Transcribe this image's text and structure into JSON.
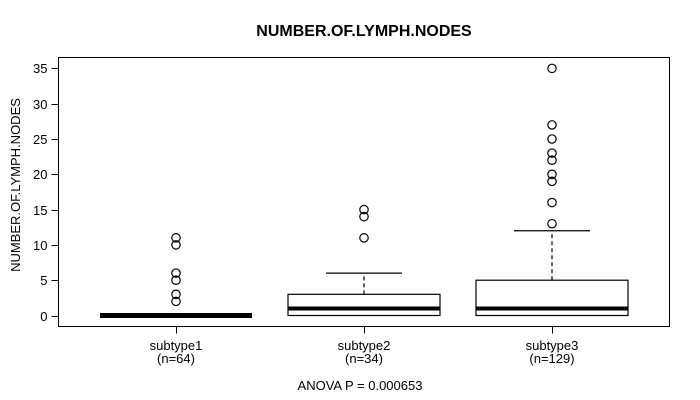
{
  "figure": {
    "background": "#ffffff",
    "line_color": "#000000"
  },
  "chart_data": {
    "type": "boxplot",
    "title": "NUMBER.OF.LYMPH.NODES",
    "ylabel": "NUMBER.OF.LYMPH.NODES",
    "xlabel": "",
    "annotation": "ANOVA P = 0.000653",
    "ylim": [
      0,
      35
    ],
    "yticks": [
      0,
      5,
      10,
      15,
      20,
      25,
      30,
      35
    ],
    "grid": false,
    "legend": false,
    "groups": [
      {
        "label": "subtype1",
        "sublabel": "(n=64)",
        "q1": 0,
        "median": 0,
        "q3": 0,
        "whisker_low": 0,
        "whisker_high": 0,
        "outliers": [
          2,
          3,
          5,
          6,
          10,
          11
        ]
      },
      {
        "label": "subtype2",
        "sublabel": "(n=34)",
        "q1": 0,
        "median": 1,
        "q3": 3,
        "whisker_low": 0,
        "whisker_high": 6,
        "outliers": [
          11,
          14,
          15
        ]
      },
      {
        "label": "subtype3",
        "sublabel": "(n=129)",
        "q1": 0,
        "median": 1,
        "q3": 5,
        "whisker_low": 0,
        "whisker_high": 12,
        "outliers": [
          13,
          16,
          19,
          20,
          22,
          23,
          25,
          27,
          35
        ]
      }
    ]
  }
}
